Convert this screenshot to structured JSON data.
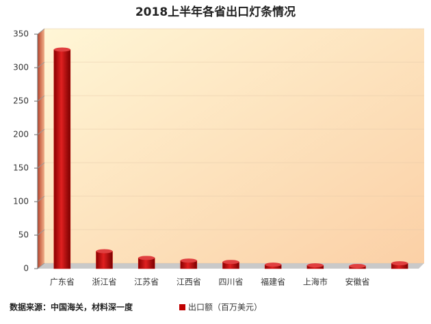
{
  "chart_data": {
    "type": "bar",
    "title": "2018上半年各省出口灯条情况",
    "categories": [
      "广东省",
      "浙江省",
      "江苏省",
      "江西省",
      "四川省",
      "福建省",
      "上海市",
      "安徽省",
      null
    ],
    "series": [
      {
        "name": "出口额（百万美元）",
        "color": "#c00000",
        "values": [
          327,
          26,
          16,
          12,
          10,
          6,
          5,
          4,
          8
        ]
      }
    ],
    "ylim": [
      0,
      350
    ],
    "yticks": [
      0,
      50,
      100,
      150,
      200,
      250,
      300,
      350
    ],
    "grid": true,
    "source": "数据来源：中国海关，材料深一度",
    "legend": "bottom"
  }
}
